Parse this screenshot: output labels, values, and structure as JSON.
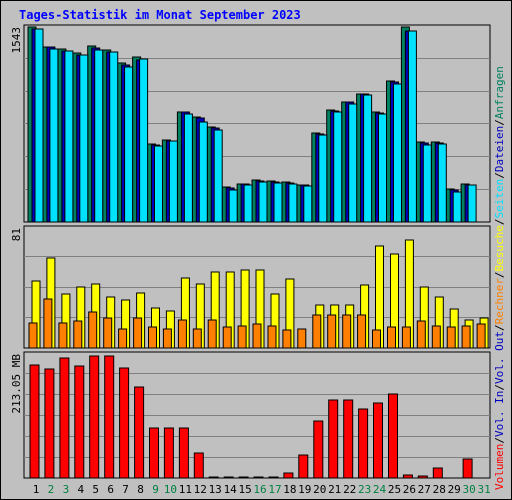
{
  "chart_data": {
    "type": "bar",
    "title": "Tages-Statistik im Monat September 2023",
    "categories": [
      "1",
      "2",
      "3",
      "4",
      "5",
      "6",
      "7",
      "8",
      "9",
      "10",
      "11",
      "12",
      "13",
      "14",
      "15",
      "16",
      "17",
      "18",
      "19",
      "20",
      "21",
      "22",
      "23",
      "24",
      "25",
      "26",
      "27",
      "28",
      "29",
      "30",
      "31"
    ],
    "weekend_days": [
      "2",
      "3",
      "9",
      "10",
      "16",
      "17",
      "23",
      "24",
      "30",
      "31"
    ],
    "panels": [
      {
        "id": "hits",
        "ymax_label": "1543",
        "ymax": 1543,
        "series": [
          {
            "name": "Anfragen",
            "color": "#008060",
            "values": [
              1543,
              1390,
              1369,
              1339,
              1394,
              1363,
              1262,
              1305,
              626,
              660,
              880,
              836,
              762,
              290,
              317,
              347,
              333,
              332,
              309,
              716,
              894,
              959,
              1022,
              878,
              1121,
              1543,
              642,
              643,
              272,
              313,
              0
            ]
          },
          {
            "name": "Dateien",
            "color": "#0000c0",
            "values": [
              1525,
              1383,
              1355,
              1320,
              1380,
              1345,
              1245,
              1288,
              620,
              653,
              875,
              828,
              753,
              283,
              310,
              340,
              327,
              325,
              303,
              708,
              887,
              953,
              1015,
              872,
              1112,
              1512,
              636,
              637,
              266,
              307,
              0
            ]
          },
          {
            "name": "Seiten",
            "color": "#00e0ff",
            "values": [
              1525,
              1370,
              1355,
              1320,
              1365,
              1345,
              1230,
              1290,
              610,
              650,
              865,
              800,
              740,
              265,
              305,
              330,
              325,
              315,
              295,
              700,
              875,
              940,
              1010,
              860,
              1100,
              1510,
              620,
              630,
              250,
              305,
              0
            ]
          }
        ]
      },
      {
        "id": "visits",
        "ymax_label": "81",
        "ymax": 81,
        "series": [
          {
            "name": "Besuche",
            "color": "#ffff00",
            "values": [
              46,
              61,
              37,
              42,
              44,
              35,
              33,
              38,
              28,
              26,
              48,
              44,
              52,
              52,
              53,
              53,
              37,
              47,
              0,
              30,
              30,
              30,
              43,
              69,
              64,
              73,
              42,
              35,
              27,
              20,
              21
            ]
          },
          {
            "name": "Rechner",
            "color": "#ff8000",
            "values": [
              18,
              34,
              18,
              19,
              25,
              21,
              14,
              21,
              15,
              14,
              20,
              14,
              20,
              15,
              16,
              17,
              16,
              13,
              14,
              23,
              23,
              23,
              23,
              13,
              15,
              15,
              19,
              16,
              15,
              16,
              17
            ]
          }
        ]
      },
      {
        "id": "volume",
        "ymax_label": "213.05 MB",
        "ymax": 213.05,
        "series": [
          {
            "name": "Volumen",
            "color": "#ff0000",
            "values": [
              195,
              188,
              207,
              193,
              210,
              209,
              189,
              157,
              88,
              88,
              88,
              45,
              4,
              3,
              3,
              3,
              3,
              12,
              42,
              100,
              135,
              136,
              120,
              130,
              145,
              9,
              6,
              20,
              0,
              35,
              0
            ]
          }
        ]
      }
    ],
    "right_legend": [
      {
        "text": "Volumen",
        "color": "#ff0000"
      },
      {
        "text": "/",
        "color": "#000000"
      },
      {
        "text": "Vol. In",
        "color": "#0000c0"
      },
      {
        "text": "/",
        "color": "#000000"
      },
      {
        "text": "Vol. Out",
        "color": "#0000c0"
      },
      {
        "text": "/",
        "color": "#000000"
      },
      {
        "text": "Rechner",
        "color": "#ff8000"
      },
      {
        "text": "/",
        "color": "#000000"
      },
      {
        "text": "Besuche",
        "color": "#ffff00"
      },
      {
        "text": "/",
        "color": "#000000"
      },
      {
        "text": "Seiten",
        "color": "#00e0ff"
      },
      {
        "text": "/",
        "color": "#000000"
      },
      {
        "text": "Dateien",
        "color": "#0000c0"
      },
      {
        "text": "/",
        "color": "#000000"
      },
      {
        "text": "Anfragen",
        "color": "#008060"
      }
    ],
    "colors": {
      "background": "#c0c0c0",
      "title": "#0000ff",
      "weekday_label": "#000000",
      "weekend_label": "#008040"
    }
  }
}
